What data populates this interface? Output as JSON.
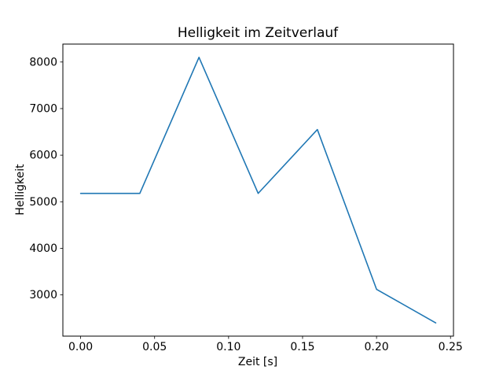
{
  "figure": {
    "background": "#ffffff"
  },
  "chart_data": {
    "type": "line",
    "title": "Helligkeit im Zeitverlauf",
    "xlabel": "Zeit [s]",
    "ylabel": "Helligkeit",
    "x": [
      0.0,
      0.04,
      0.08,
      0.12,
      0.16,
      0.2,
      0.24
    ],
    "y": [
      5180,
      5180,
      8100,
      5180,
      6550,
      3120,
      2400
    ],
    "xlim": [
      -0.012,
      0.252
    ],
    "ylim": [
      2115,
      8385
    ],
    "xticks": [
      0.0,
      0.05,
      0.1,
      0.15,
      0.2,
      0.25
    ],
    "xtick_labels": [
      "0.00",
      "0.05",
      "0.10",
      "0.15",
      "0.20",
      "0.25"
    ],
    "yticks": [
      3000,
      4000,
      5000,
      6000,
      7000,
      8000
    ],
    "ytick_labels": [
      "3000",
      "4000",
      "5000",
      "6000",
      "7000",
      "8000"
    ],
    "line_color": "#1f77b4",
    "axis_color": "#000000",
    "grid": false,
    "legend_position": "none"
  }
}
